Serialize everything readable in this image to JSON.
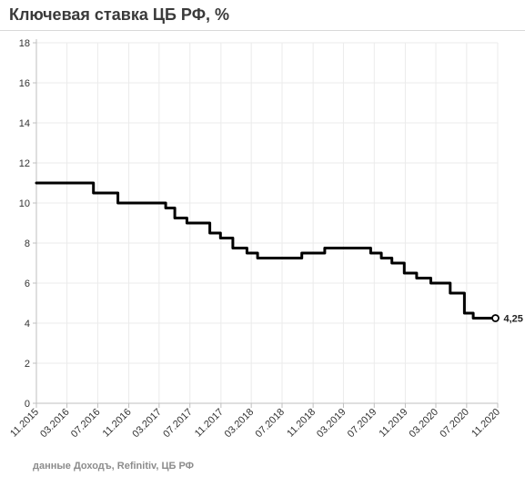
{
  "title": "Ключевая ставка ЦБ РФ, %",
  "source": "данные Доходъ, Refinitiv, ЦБ РФ",
  "chart_data": {
    "type": "line",
    "title": "Ключевая ставка ЦБ РФ, %",
    "xlabel": "",
    "ylabel": "",
    "ylim": [
      0,
      18
    ],
    "yticks": [
      0,
      2,
      4,
      6,
      8,
      10,
      12,
      14,
      16,
      18
    ],
    "xlim": [
      "2015-11",
      "2020-11"
    ],
    "xticks": [
      "11.2015",
      "03.2016",
      "07.2016",
      "11.2016",
      "03.2017",
      "07.2017",
      "11.2017",
      "03.2018",
      "07.2018",
      "11.2018",
      "03.2019",
      "07.2019",
      "11.2019",
      "03.2020",
      "07.2020",
      "11.2020"
    ],
    "grid": true,
    "line_color": "#000000",
    "series": [
      {
        "points": [
          [
            "2015-11",
            11.0
          ],
          [
            "2016-06-14",
            11.0
          ],
          [
            "2016-06-14",
            10.5
          ],
          [
            "2016-09-19",
            10.5
          ],
          [
            "2016-09-19",
            10.0
          ],
          [
            "2017-03-27",
            10.0
          ],
          [
            "2017-03-27",
            9.75
          ],
          [
            "2017-05-02",
            9.75
          ],
          [
            "2017-05-02",
            9.25
          ],
          [
            "2017-06-19",
            9.25
          ],
          [
            "2017-06-19",
            9.0
          ],
          [
            "2017-09-18",
            9.0
          ],
          [
            "2017-09-18",
            8.5
          ],
          [
            "2017-10-30",
            8.5
          ],
          [
            "2017-10-30",
            8.25
          ],
          [
            "2017-12-18",
            8.25
          ],
          [
            "2017-12-18",
            7.75
          ],
          [
            "2018-02-12",
            7.75
          ],
          [
            "2018-02-12",
            7.5
          ],
          [
            "2018-03-26",
            7.5
          ],
          [
            "2018-03-26",
            7.25
          ],
          [
            "2018-09-17",
            7.25
          ],
          [
            "2018-09-17",
            7.5
          ],
          [
            "2018-12-17",
            7.5
          ],
          [
            "2018-12-17",
            7.75
          ],
          [
            "2019-06-17",
            7.75
          ],
          [
            "2019-06-17",
            7.5
          ],
          [
            "2019-07-29",
            7.5
          ],
          [
            "2019-07-29",
            7.25
          ],
          [
            "2019-09-09",
            7.25
          ],
          [
            "2019-09-09",
            7.0
          ],
          [
            "2019-10-28",
            7.0
          ],
          [
            "2019-10-28",
            6.5
          ],
          [
            "2019-12-16",
            6.5
          ],
          [
            "2019-12-16",
            6.25
          ],
          [
            "2020-02-10",
            6.25
          ],
          [
            "2020-02-10",
            6.0
          ],
          [
            "2020-04-27",
            6.0
          ],
          [
            "2020-04-27",
            5.5
          ],
          [
            "2020-06-22",
            5.5
          ],
          [
            "2020-06-22",
            4.5
          ],
          [
            "2020-07-27",
            4.5
          ],
          [
            "2020-07-27",
            4.25
          ],
          [
            "2020-10-23",
            4.25
          ]
        ]
      }
    ],
    "end_label": "4,25"
  }
}
